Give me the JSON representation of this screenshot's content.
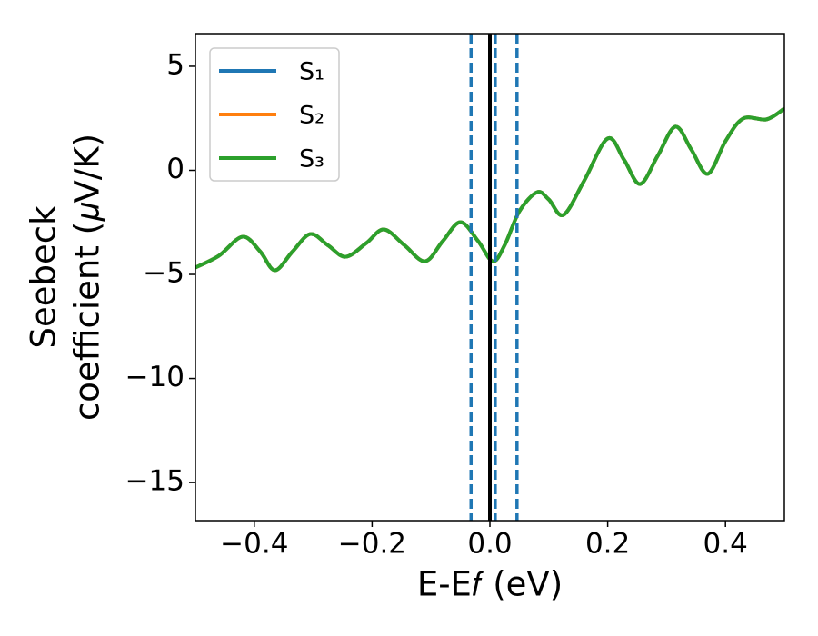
{
  "chart_data": {
    "type": "line",
    "xlabel": "E-E𝑓 (eV)",
    "ylabel": [
      "Seebeck",
      "coefficient  (𝜇V/K)"
    ],
    "x": [
      -0.5,
      -0.46,
      -0.42,
      -0.39,
      -0.365,
      -0.335,
      -0.305,
      -0.275,
      -0.245,
      -0.21,
      -0.18,
      -0.145,
      -0.11,
      -0.08,
      -0.05,
      -0.02,
      0.005,
      0.025,
      0.05,
      0.08,
      0.1,
      0.125,
      0.16,
      0.2,
      0.228,
      0.255,
      0.285,
      0.315,
      0.342,
      0.37,
      0.4,
      0.43,
      0.47,
      0.5
    ],
    "series": [
      {
        "name": "S₁",
        "color": "#1f77b4",
        "values": [
          -4.67,
          -4.1,
          -3.19,
          -3.9,
          -4.8,
          -3.9,
          -3.06,
          -3.6,
          -4.15,
          -3.5,
          -2.84,
          -3.6,
          -4.37,
          -3.4,
          -2.49,
          -3.4,
          -4.37,
          -3.6,
          -1.97,
          -1.05,
          -1.4,
          -2.14,
          -0.5,
          1.53,
          0.5,
          -0.66,
          0.7,
          2.1,
          1.0,
          -0.17,
          1.4,
          2.49,
          2.45,
          2.97
        ]
      },
      {
        "name": "S₂",
        "color": "#ff7f0e",
        "values": [
          -4.67,
          -4.1,
          -3.19,
          -3.9,
          -4.8,
          -3.9,
          -3.06,
          -3.6,
          -4.15,
          -3.5,
          -2.84,
          -3.6,
          -4.37,
          -3.4,
          -2.49,
          -3.4,
          -4.37,
          -3.6,
          -1.97,
          -1.05,
          -1.4,
          -2.14,
          -0.5,
          1.53,
          0.5,
          -0.66,
          0.7,
          2.1,
          1.0,
          -0.17,
          1.4,
          2.49,
          2.45,
          2.97
        ]
      },
      {
        "name": "S₃",
        "color": "#2ca02c",
        "values": [
          -4.67,
          -4.1,
          -3.19,
          -3.9,
          -4.8,
          -3.9,
          -3.06,
          -3.6,
          -4.15,
          -3.5,
          -2.84,
          -3.6,
          -4.37,
          -3.4,
          -2.49,
          -3.4,
          -4.37,
          -3.6,
          -1.97,
          -1.05,
          -1.4,
          -2.14,
          -0.5,
          1.53,
          0.5,
          -0.66,
          0.7,
          2.1,
          1.0,
          -0.17,
          1.4,
          2.49,
          2.45,
          2.97
        ]
      }
    ],
    "vlines": [
      {
        "x": -0.032,
        "color": "#1f77b4",
        "style": "dashed"
      },
      {
        "x": 0.009,
        "color": "#1f77b4",
        "style": "dashed"
      },
      {
        "x": 0.046,
        "color": "#1f77b4",
        "style": "dashed"
      },
      {
        "x": 0,
        "color": "#000000",
        "style": "solid"
      }
    ],
    "xlim": [
      -0.5,
      0.5
    ],
    "ylim": [
      -16.83,
      6.57
    ],
    "xticks": [
      {
        "value": -0.4,
        "label": "−0.4"
      },
      {
        "value": -0.2,
        "label": "−0.2"
      },
      {
        "value": 0,
        "label": "0.0"
      },
      0.2,
      0.4
    ],
    "yticks": [
      {
        "value": -15,
        "label": "−15"
      },
      {
        "value": -10,
        "label": "−10"
      },
      {
        "value": -5,
        "label": "−5"
      },
      0,
      5
    ],
    "legend": "upper left",
    "grid": false
  }
}
